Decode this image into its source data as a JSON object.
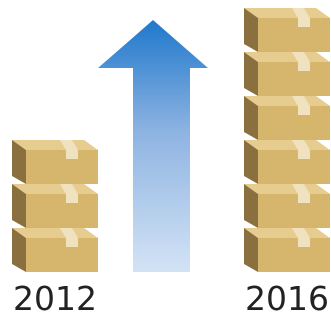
{
  "labels": [
    "2012",
    "2016"
  ]
}
